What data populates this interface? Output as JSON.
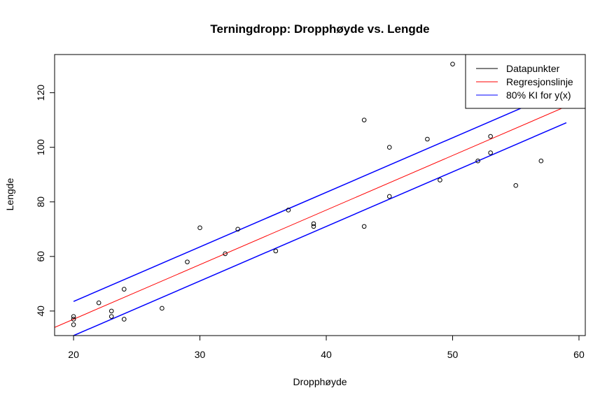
{
  "chart_data": {
    "type": "scatter",
    "title": "Terningdropp: Dropphøyde vs. Lengde",
    "xlabel": "Dropphøyde",
    "ylabel": "Lengde",
    "xlim": [
      18.5,
      60.5
    ],
    "ylim": [
      31,
      134
    ],
    "x_ticks": [
      20,
      30,
      40,
      50,
      60
    ],
    "y_ticks": [
      40,
      60,
      80,
      100,
      120
    ],
    "grid": false,
    "legend_position": "top-right",
    "points": [
      [
        20,
        35
      ],
      [
        20,
        37
      ],
      [
        20,
        38
      ],
      [
        22,
        43
      ],
      [
        23,
        38
      ],
      [
        23,
        40
      ],
      [
        24,
        37
      ],
      [
        24,
        48
      ],
      [
        27,
        41
      ],
      [
        29,
        58
      ],
      [
        30,
        70.5
      ],
      [
        32,
        61
      ],
      [
        33,
        70
      ],
      [
        36,
        62
      ],
      [
        37,
        77
      ],
      [
        39,
        71
      ],
      [
        39,
        72
      ],
      [
        43,
        71
      ],
      [
        43,
        110
      ],
      [
        45,
        82
      ],
      [
        45,
        100
      ],
      [
        48,
        103
      ],
      [
        49,
        88
      ],
      [
        50,
        130.5
      ],
      [
        52,
        95
      ],
      [
        53,
        98
      ],
      [
        53,
        104
      ],
      [
        55,
        86
      ],
      [
        57,
        95
      ]
    ],
    "regression": {
      "slope": 2.0,
      "intercept": -3.0,
      "color": "#ff0000"
    },
    "interval": {
      "upper": {
        "slope": 2.0,
        "intercept": 3.5
      },
      "lower": {
        "slope": 2.0,
        "intercept": -9.0
      },
      "x_from": 20,
      "x_to": 59,
      "color": "#0000ff"
    },
    "legend": [
      {
        "label": "Datapunkter",
        "color": "#000000"
      },
      {
        "label": "Regresjonslinje",
        "color": "#ff0000"
      },
      {
        "label": "80% KI for y(x)",
        "color": "#0000ff"
      }
    ]
  }
}
